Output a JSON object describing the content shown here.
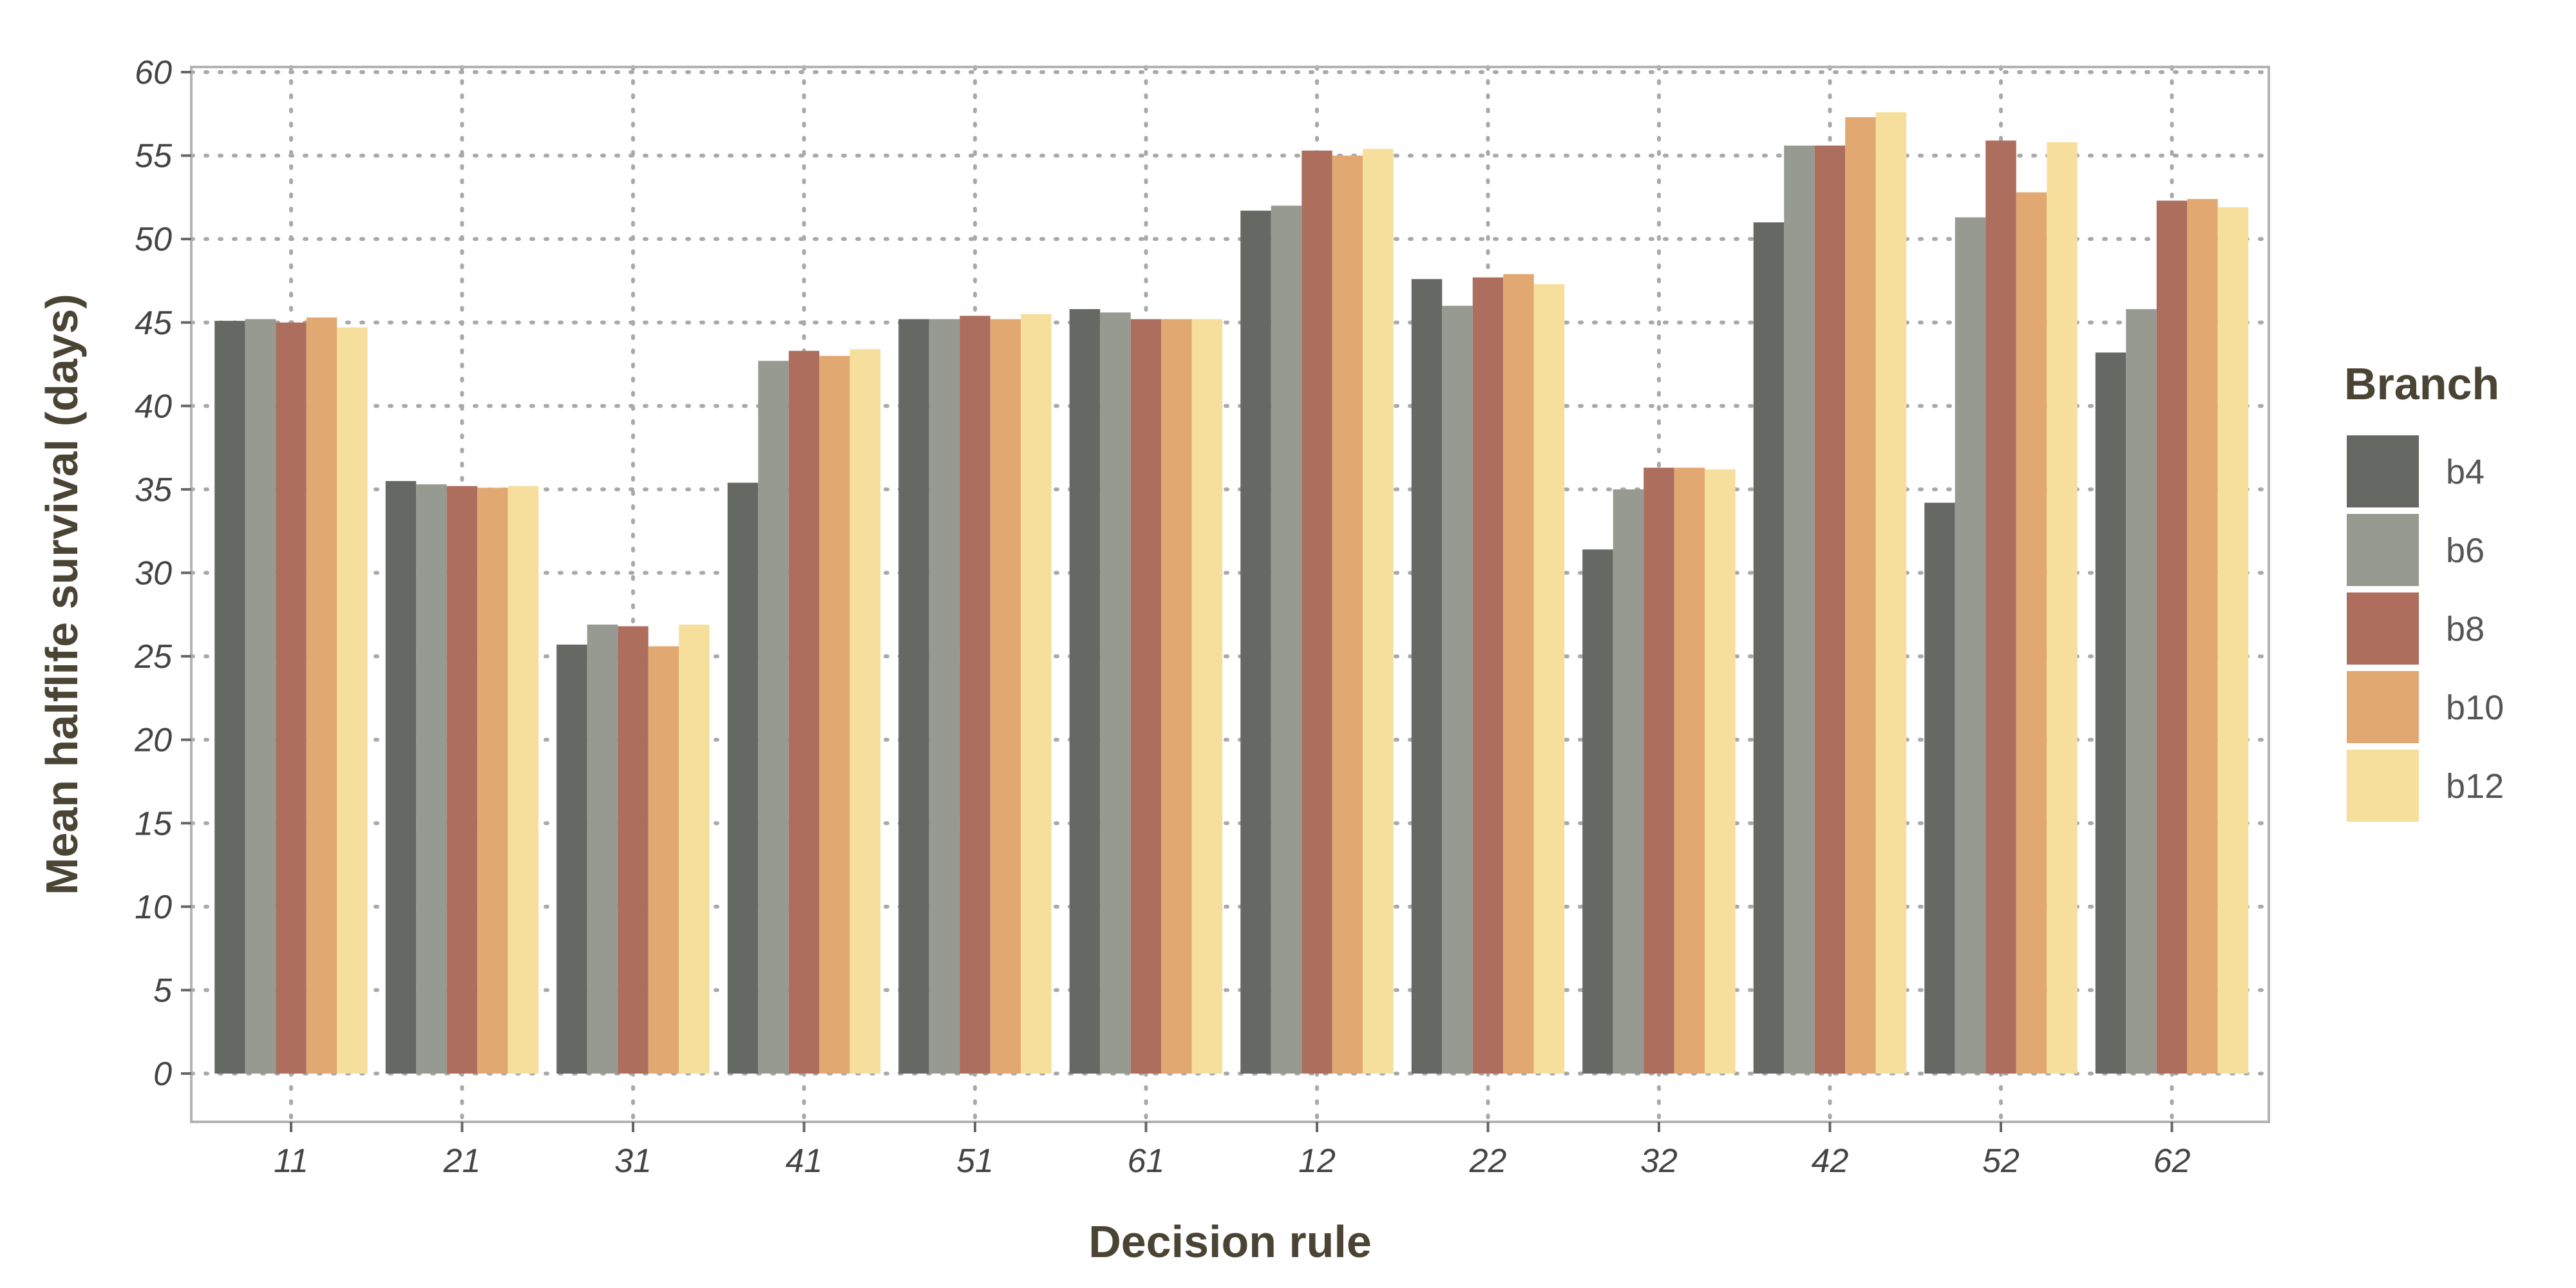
{
  "chart_data": {
    "type": "bar",
    "xlabel": "Decision rule",
    "ylabel": "Mean halflife survival (days)",
    "ylim": [
      0,
      60
    ],
    "y_ticks": [
      0,
      5,
      10,
      15,
      20,
      25,
      30,
      35,
      40,
      45,
      50,
      55,
      60
    ],
    "grid": true,
    "legend": {
      "title": "Branch",
      "placement": "right"
    },
    "categories": [
      "11",
      "21",
      "31",
      "41",
      "51",
      "61",
      "12",
      "22",
      "32",
      "42",
      "52",
      "62"
    ],
    "series": [
      {
        "name": "b4",
        "color": "#666863",
        "values": [
          45.1,
          35.5,
          25.7,
          35.4,
          45.2,
          45.8,
          51.7,
          47.6,
          31.4,
          51.0,
          34.2,
          43.2
        ]
      },
      {
        "name": "b6",
        "color": "#969a90",
        "values": [
          45.2,
          35.3,
          26.9,
          42.7,
          45.2,
          45.6,
          52.0,
          46.0,
          35.0,
          55.6,
          51.3,
          45.8
        ]
      },
      {
        "name": "b8",
        "color": "#ad6e5e",
        "values": [
          45.0,
          35.2,
          26.8,
          43.3,
          45.4,
          45.2,
          55.3,
          47.7,
          36.3,
          55.6,
          55.9,
          52.3
        ]
      },
      {
        "name": "b10",
        "color": "#e2a872",
        "values": [
          45.3,
          35.1,
          25.6,
          43.0,
          45.2,
          45.2,
          55.0,
          47.9,
          36.3,
          57.3,
          52.8,
          52.4
        ]
      },
      {
        "name": "b12",
        "color": "#f6df9c",
        "values": [
          44.7,
          35.2,
          26.9,
          43.4,
          45.5,
          45.2,
          55.4,
          47.3,
          36.2,
          57.6,
          55.8,
          51.9
        ]
      }
    ]
  }
}
